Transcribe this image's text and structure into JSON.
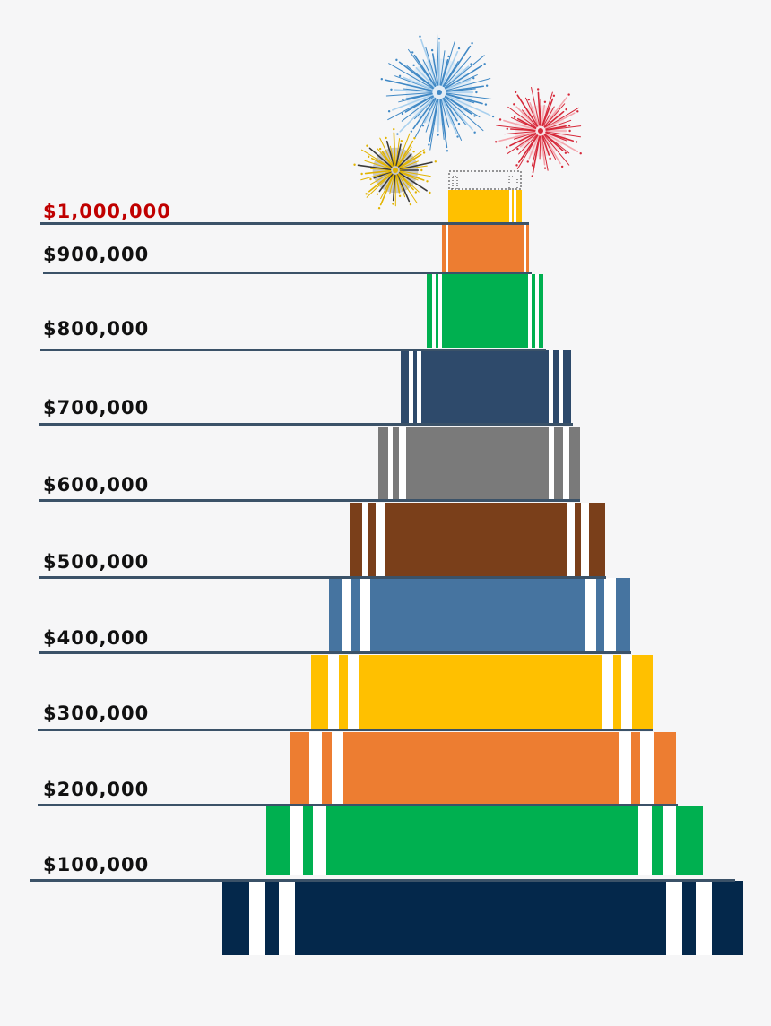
{
  "milestones": [
    {
      "label": "$1,000,000",
      "highlight": true
    },
    {
      "label": "$900,000",
      "highlight": false
    },
    {
      "label": "$800,000",
      "highlight": false
    },
    {
      "label": "$700,000",
      "highlight": false
    },
    {
      "label": "$600,000",
      "highlight": false
    },
    {
      "label": "$500,000",
      "highlight": false
    },
    {
      "label": "$400,000",
      "highlight": false
    },
    {
      "label": "$300,000",
      "highlight": false
    },
    {
      "label": "$200,000",
      "highlight": false
    },
    {
      "label": "$100,000",
      "highlight": false
    }
  ],
  "tiers": [
    {
      "color": "#ffc000"
    },
    {
      "color": "#ed7d31"
    },
    {
      "color": "#00b050"
    },
    {
      "color": "#2e4a6b"
    },
    {
      "color": "#7a7a7a"
    },
    {
      "color": "#7a3f1a"
    },
    {
      "color": "#4674a0"
    },
    {
      "color": "#ffc000"
    },
    {
      "color": "#ed7d31"
    },
    {
      "color": "#00b050"
    },
    {
      "color": "#04284b"
    }
  ],
  "colors": {
    "line": "#3b5268",
    "label": "#111111",
    "highlight_label": "#c00000",
    "background": "#f6f6f7"
  },
  "fireworks": [
    {
      "name": "blue-firework-icon",
      "color": "#3f88c5",
      "accent": "#a9d0ee"
    },
    {
      "name": "red-firework-icon",
      "color": "#d62839",
      "accent": "#f4a6ae"
    },
    {
      "name": "yellow-firework-icon",
      "color": "#e2b400",
      "accent": "#3a3a3a"
    }
  ]
}
